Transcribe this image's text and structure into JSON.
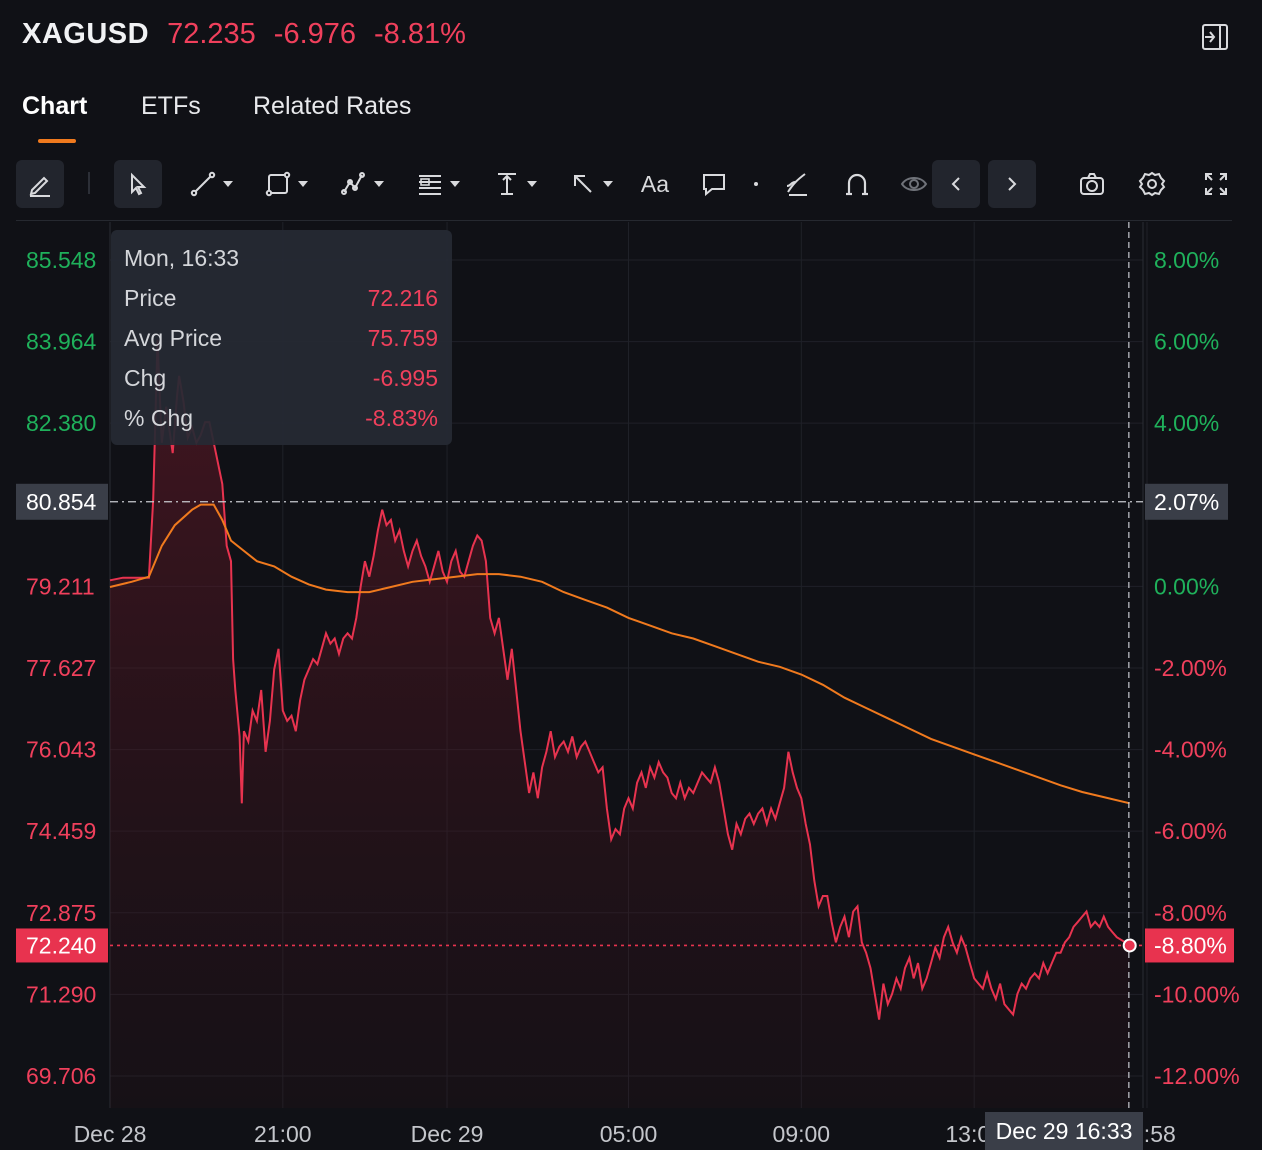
{
  "header": {
    "symbol": "XAGUSD",
    "price": "72.235",
    "change": "-6.976",
    "change_pct": "-8.81%",
    "collapse_icon": "panel-collapse-icon"
  },
  "tabs": [
    {
      "label": "Chart",
      "active": true
    },
    {
      "label": "ETFs",
      "active": false
    },
    {
      "label": "Related Rates",
      "active": false
    }
  ],
  "toolbar": {
    "tools": [
      "pencil-icon",
      "cursor-icon",
      "trend-line-icon",
      "rectangle-icon",
      "pattern-icon",
      "fibonacci-icon",
      "measure-icon",
      "arrow-icon",
      "text-icon",
      "comment-icon",
      "dot-icon",
      "brush-icon",
      "magnet-icon",
      "eye-icon",
      "chevron-left-icon",
      "chevron-right-icon",
      "camera-icon",
      "gear-icon",
      "fullscreen-icon"
    ],
    "text_tool_label": "Aa"
  },
  "tooltip": {
    "time": "Mon, 16:33",
    "rows": [
      {
        "label": "Price",
        "value": "72.216"
      },
      {
        "label": "Avg Price",
        "value": "75.759"
      },
      {
        "label": "Chg",
        "value": "-6.995"
      },
      {
        "label": "% Chg",
        "value": "-8.83%"
      }
    ]
  },
  "chart_data": {
    "type": "area",
    "reference_price": 79.211,
    "ylim": [
      69.706,
      85.548
    ],
    "y_ticks": [
      "85.548",
      "83.964",
      "82.380",
      "80.854",
      "79.211",
      "77.627",
      "76.043",
      "74.459",
      "72.875",
      "72.240",
      "71.290",
      "69.706"
    ],
    "y_ticks_right": [
      "8.00%",
      "6.00%",
      "4.00%",
      "2.07%",
      "0.00%",
      "-2.00%",
      "-4.00%",
      "-6.00%",
      "-8.00%",
      "-8.80%",
      "-10.00%",
      "-12.00%"
    ],
    "x_ticks": [
      "Dec 28",
      "21:00",
      "Dec 29",
      "05:00",
      "09:00",
      "13:00",
      "16:58"
    ],
    "x_hours": [
      17.0,
      21.0,
      24.8,
      29.0,
      33.0,
      37.0,
      41.0
    ],
    "crosshair": {
      "x_label": "Dec 29 16:33",
      "x_hour": 40.58,
      "y_label": "80.854",
      "y_label_right": "2.07%",
      "y": 80.854
    },
    "last_price": {
      "label": "72.240",
      "pct_label": "-8.80%",
      "y": 72.24
    },
    "colors": {
      "price": "#e8334f",
      "avg": "#f07a1e",
      "up": "#1fb15b",
      "down": "#f0405c"
    },
    "series": [
      {
        "name": "Price",
        "points": [
          [
            17.0,
            79.33
          ],
          [
            17.3,
            79.38
          ],
          [
            17.6,
            79.38
          ],
          [
            17.9,
            79.38
          ],
          [
            18.0,
            80.9
          ],
          [
            18.1,
            84.0
          ],
          [
            18.2,
            82.0
          ],
          [
            18.3,
            82.7
          ],
          [
            18.45,
            81.8
          ],
          [
            18.55,
            82.9
          ],
          [
            18.6,
            83.3
          ],
          [
            18.7,
            82.8
          ],
          [
            18.8,
            82.1
          ],
          [
            18.9,
            82.3
          ],
          [
            19.0,
            82.0
          ],
          [
            19.1,
            82.15
          ],
          [
            19.2,
            82.4
          ],
          [
            19.3,
            82.4
          ],
          [
            19.45,
            81.8
          ],
          [
            19.6,
            81.2
          ],
          [
            19.7,
            80.0
          ],
          [
            19.8,
            79.7
          ],
          [
            19.85,
            77.8
          ],
          [
            19.9,
            77.2
          ],
          [
            20.0,
            76.3
          ],
          [
            20.05,
            75.0
          ],
          [
            20.1,
            76.4
          ],
          [
            20.2,
            76.2
          ],
          [
            20.3,
            76.8
          ],
          [
            20.4,
            76.6
          ],
          [
            20.5,
            77.2
          ],
          [
            20.6,
            76.0
          ],
          [
            20.7,
            76.6
          ],
          [
            20.8,
            77.6
          ],
          [
            20.9,
            78.0
          ],
          [
            21.0,
            76.8
          ],
          [
            21.1,
            76.6
          ],
          [
            21.2,
            76.7
          ],
          [
            21.3,
            76.4
          ],
          [
            21.4,
            77.0
          ],
          [
            21.5,
            77.4
          ],
          [
            21.6,
            77.6
          ],
          [
            21.7,
            77.8
          ],
          [
            21.8,
            77.7
          ],
          [
            21.9,
            78.0
          ],
          [
            22.0,
            78.3
          ],
          [
            22.1,
            78.1
          ],
          [
            22.2,
            78.2
          ],
          [
            22.3,
            77.9
          ],
          [
            22.4,
            78.2
          ],
          [
            22.5,
            78.3
          ],
          [
            22.6,
            78.2
          ],
          [
            22.7,
            78.6
          ],
          [
            22.8,
            79.2
          ],
          [
            22.9,
            79.7
          ],
          [
            23.0,
            79.4
          ],
          [
            23.1,
            79.8
          ],
          [
            23.2,
            80.3
          ],
          [
            23.3,
            80.7
          ],
          [
            23.4,
            80.4
          ],
          [
            23.5,
            80.5
          ],
          [
            23.6,
            80.1
          ],
          [
            23.7,
            80.3
          ],
          [
            23.8,
            79.9
          ],
          [
            23.9,
            79.6
          ],
          [
            24.0,
            79.9
          ],
          [
            24.1,
            80.1
          ],
          [
            24.2,
            79.8
          ],
          [
            24.3,
            79.6
          ],
          [
            24.4,
            79.3
          ],
          [
            24.5,
            79.6
          ],
          [
            24.6,
            79.9
          ],
          [
            24.7,
            79.5
          ],
          [
            24.8,
            79.3
          ],
          [
            24.9,
            79.7
          ],
          [
            25.0,
            79.9
          ],
          [
            25.1,
            79.5
          ],
          [
            25.2,
            79.4
          ],
          [
            25.3,
            79.7
          ],
          [
            25.4,
            80.0
          ],
          [
            25.5,
            80.2
          ],
          [
            25.6,
            80.1
          ],
          [
            25.7,
            79.7
          ],
          [
            25.8,
            78.6
          ],
          [
            25.9,
            78.3
          ],
          [
            26.0,
            78.6
          ],
          [
            26.1,
            78.0
          ],
          [
            26.2,
            77.4
          ],
          [
            26.3,
            78.0
          ],
          [
            26.4,
            77.2
          ],
          [
            26.5,
            76.4
          ],
          [
            26.6,
            75.8
          ],
          [
            26.7,
            75.2
          ],
          [
            26.8,
            75.6
          ],
          [
            26.9,
            75.1
          ],
          [
            27.0,
            75.7
          ],
          [
            27.1,
            76.0
          ],
          [
            27.2,
            76.4
          ],
          [
            27.3,
            75.9
          ],
          [
            27.4,
            76.1
          ],
          [
            27.5,
            76.2
          ],
          [
            27.6,
            76.0
          ],
          [
            27.7,
            76.3
          ],
          [
            27.8,
            75.9
          ],
          [
            27.9,
            76.1
          ],
          [
            28.0,
            76.2
          ],
          [
            28.1,
            76.0
          ],
          [
            28.2,
            75.8
          ],
          [
            28.3,
            75.6
          ],
          [
            28.4,
            75.7
          ],
          [
            28.5,
            74.9
          ],
          [
            28.6,
            74.3
          ],
          [
            28.7,
            74.5
          ],
          [
            28.8,
            74.4
          ],
          [
            28.9,
            74.9
          ],
          [
            29.0,
            75.1
          ],
          [
            29.1,
            74.9
          ],
          [
            29.2,
            75.4
          ],
          [
            29.3,
            75.6
          ],
          [
            29.4,
            75.3
          ],
          [
            29.5,
            75.7
          ],
          [
            29.6,
            75.5
          ],
          [
            29.7,
            75.8
          ],
          [
            29.8,
            75.6
          ],
          [
            29.9,
            75.5
          ],
          [
            30.0,
            75.2
          ],
          [
            30.1,
            75.1
          ],
          [
            30.2,
            75.4
          ],
          [
            30.3,
            75.1
          ],
          [
            30.4,
            75.3
          ],
          [
            30.5,
            75.2
          ],
          [
            30.6,
            75.4
          ],
          [
            30.7,
            75.6
          ],
          [
            30.8,
            75.5
          ],
          [
            30.9,
            75.4
          ],
          [
            31.0,
            75.7
          ],
          [
            31.1,
            75.4
          ],
          [
            31.2,
            74.9
          ],
          [
            31.3,
            74.4
          ],
          [
            31.4,
            74.1
          ],
          [
            31.5,
            74.6
          ],
          [
            31.6,
            74.4
          ],
          [
            31.7,
            74.7
          ],
          [
            31.8,
            74.8
          ],
          [
            31.9,
            74.6
          ],
          [
            32.0,
            74.8
          ],
          [
            32.1,
            74.9
          ],
          [
            32.2,
            74.6
          ],
          [
            32.3,
            74.9
          ],
          [
            32.4,
            74.7
          ],
          [
            32.5,
            75.0
          ],
          [
            32.6,
            75.3
          ],
          [
            32.7,
            76.0
          ],
          [
            32.8,
            75.6
          ],
          [
            32.9,
            75.3
          ],
          [
            33.0,
            75.1
          ],
          [
            33.1,
            74.6
          ],
          [
            33.2,
            74.2
          ],
          [
            33.3,
            73.5
          ],
          [
            33.4,
            73.0
          ],
          [
            33.5,
            73.2
          ],
          [
            33.6,
            73.2
          ],
          [
            33.7,
            72.7
          ],
          [
            33.8,
            72.3
          ],
          [
            33.9,
            72.6
          ],
          [
            34.0,
            72.8
          ],
          [
            34.1,
            72.4
          ],
          [
            34.2,
            72.9
          ],
          [
            34.3,
            73.0
          ],
          [
            34.4,
            72.3
          ],
          [
            34.5,
            72.1
          ],
          [
            34.6,
            71.8
          ],
          [
            34.7,
            71.3
          ],
          [
            34.8,
            70.8
          ],
          [
            34.9,
            71.5
          ],
          [
            35.0,
            71.1
          ],
          [
            35.1,
            71.3
          ],
          [
            35.2,
            71.6
          ],
          [
            35.3,
            71.4
          ],
          [
            35.4,
            71.8
          ],
          [
            35.5,
            72.0
          ],
          [
            35.6,
            71.6
          ],
          [
            35.7,
            71.9
          ],
          [
            35.8,
            71.4
          ],
          [
            35.9,
            71.6
          ],
          [
            36.0,
            71.9
          ],
          [
            36.1,
            72.2
          ],
          [
            36.2,
            72.0
          ],
          [
            36.3,
            72.4
          ],
          [
            36.4,
            72.6
          ],
          [
            36.5,
            72.3
          ],
          [
            36.6,
            72.1
          ],
          [
            36.7,
            72.4
          ],
          [
            36.8,
            72.2
          ],
          [
            36.9,
            71.9
          ],
          [
            37.0,
            71.6
          ],
          [
            37.1,
            71.5
          ],
          [
            37.2,
            71.4
          ],
          [
            37.3,
            71.7
          ],
          [
            37.4,
            71.4
          ],
          [
            37.5,
            71.2
          ],
          [
            37.6,
            71.5
          ],
          [
            37.7,
            71.1
          ],
          [
            37.8,
            71.0
          ],
          [
            37.9,
            70.9
          ],
          [
            38.0,
            71.3
          ],
          [
            38.1,
            71.5
          ],
          [
            38.2,
            71.4
          ],
          [
            38.3,
            71.6
          ],
          [
            38.4,
            71.7
          ],
          [
            38.5,
            71.6
          ],
          [
            38.6,
            71.9
          ],
          [
            38.7,
            71.7
          ],
          [
            38.8,
            71.9
          ],
          [
            38.9,
            72.1
          ],
          [
            39.0,
            72.1
          ],
          [
            39.1,
            72.3
          ],
          [
            39.2,
            72.4
          ],
          [
            39.3,
            72.6
          ],
          [
            39.4,
            72.7
          ],
          [
            39.5,
            72.8
          ],
          [
            39.6,
            72.9
          ],
          [
            39.7,
            72.6
          ],
          [
            39.8,
            72.7
          ],
          [
            39.9,
            72.6
          ],
          [
            40.0,
            72.8
          ],
          [
            40.1,
            72.6
          ],
          [
            40.2,
            72.5
          ],
          [
            40.3,
            72.4
          ],
          [
            40.4,
            72.35
          ],
          [
            40.5,
            72.3
          ],
          [
            40.6,
            72.24
          ]
        ]
      },
      {
        "name": "Avg Price",
        "points": [
          [
            17.0,
            79.2
          ],
          [
            17.5,
            79.3
          ],
          [
            17.9,
            79.4
          ],
          [
            18.2,
            80.0
          ],
          [
            18.5,
            80.4
          ],
          [
            18.9,
            80.7
          ],
          [
            19.1,
            80.8
          ],
          [
            19.4,
            80.8
          ],
          [
            19.6,
            80.5
          ],
          [
            19.8,
            80.1
          ],
          [
            20.1,
            79.9
          ],
          [
            20.4,
            79.7
          ],
          [
            20.8,
            79.6
          ],
          [
            21.2,
            79.4
          ],
          [
            21.6,
            79.25
          ],
          [
            22.0,
            79.15
          ],
          [
            22.5,
            79.1
          ],
          [
            23.0,
            79.1
          ],
          [
            23.5,
            79.2
          ],
          [
            24.0,
            79.3
          ],
          [
            24.5,
            79.35
          ],
          [
            25.0,
            79.4
          ],
          [
            25.5,
            79.45
          ],
          [
            26.0,
            79.45
          ],
          [
            26.5,
            79.4
          ],
          [
            27.0,
            79.3
          ],
          [
            27.5,
            79.1
          ],
          [
            28.0,
            78.95
          ],
          [
            28.5,
            78.8
          ],
          [
            29.0,
            78.6
          ],
          [
            29.5,
            78.45
          ],
          [
            30.0,
            78.3
          ],
          [
            30.5,
            78.2
          ],
          [
            31.0,
            78.05
          ],
          [
            31.5,
            77.9
          ],
          [
            32.0,
            77.75
          ],
          [
            32.5,
            77.65
          ],
          [
            33.0,
            77.5
          ],
          [
            33.5,
            77.3
          ],
          [
            34.0,
            77.05
          ],
          [
            34.5,
            76.85
          ],
          [
            35.0,
            76.65
          ],
          [
            35.5,
            76.45
          ],
          [
            36.0,
            76.25
          ],
          [
            36.5,
            76.1
          ],
          [
            37.0,
            75.95
          ],
          [
            37.5,
            75.8
          ],
          [
            38.0,
            75.65
          ],
          [
            38.5,
            75.5
          ],
          [
            39.0,
            75.35
          ],
          [
            39.5,
            75.22
          ],
          [
            40.0,
            75.12
          ],
          [
            40.6,
            75.0
          ]
        ]
      }
    ]
  }
}
